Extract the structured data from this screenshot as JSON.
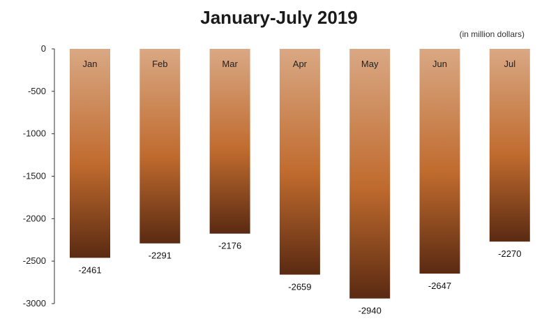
{
  "chart_data": {
    "type": "bar",
    "title": "January-July 2019",
    "unit_note": "(in million dollars)",
    "xlabel": "",
    "ylabel": "",
    "categories": [
      "Jan",
      "Feb",
      "Mar",
      "Apr",
      "May",
      "Jun",
      "Jul"
    ],
    "values": [
      -2461,
      -2291,
      -2176,
      -2659,
      -2940,
      -2647,
      -2270
    ],
    "data_labels": [
      "-2461",
      "-2291",
      "-2176",
      "-2659",
      "-2940",
      "-2647",
      "-2270"
    ],
    "ylim": [
      -3000,
      0
    ],
    "yticks": [
      0,
      -500,
      -1000,
      -1500,
      -2000,
      -2500,
      -3000
    ],
    "ytick_labels": [
      "0",
      "-500",
      "-1000",
      "-1500",
      "-2000",
      "-2500",
      "-3000"
    ],
    "grid": false,
    "legend": "none",
    "colors": {
      "bar_top": "#d9a884",
      "bar_mid": "#c06b2e",
      "bar_bottom": "#5a2a12",
      "axis": "#333333"
    }
  }
}
